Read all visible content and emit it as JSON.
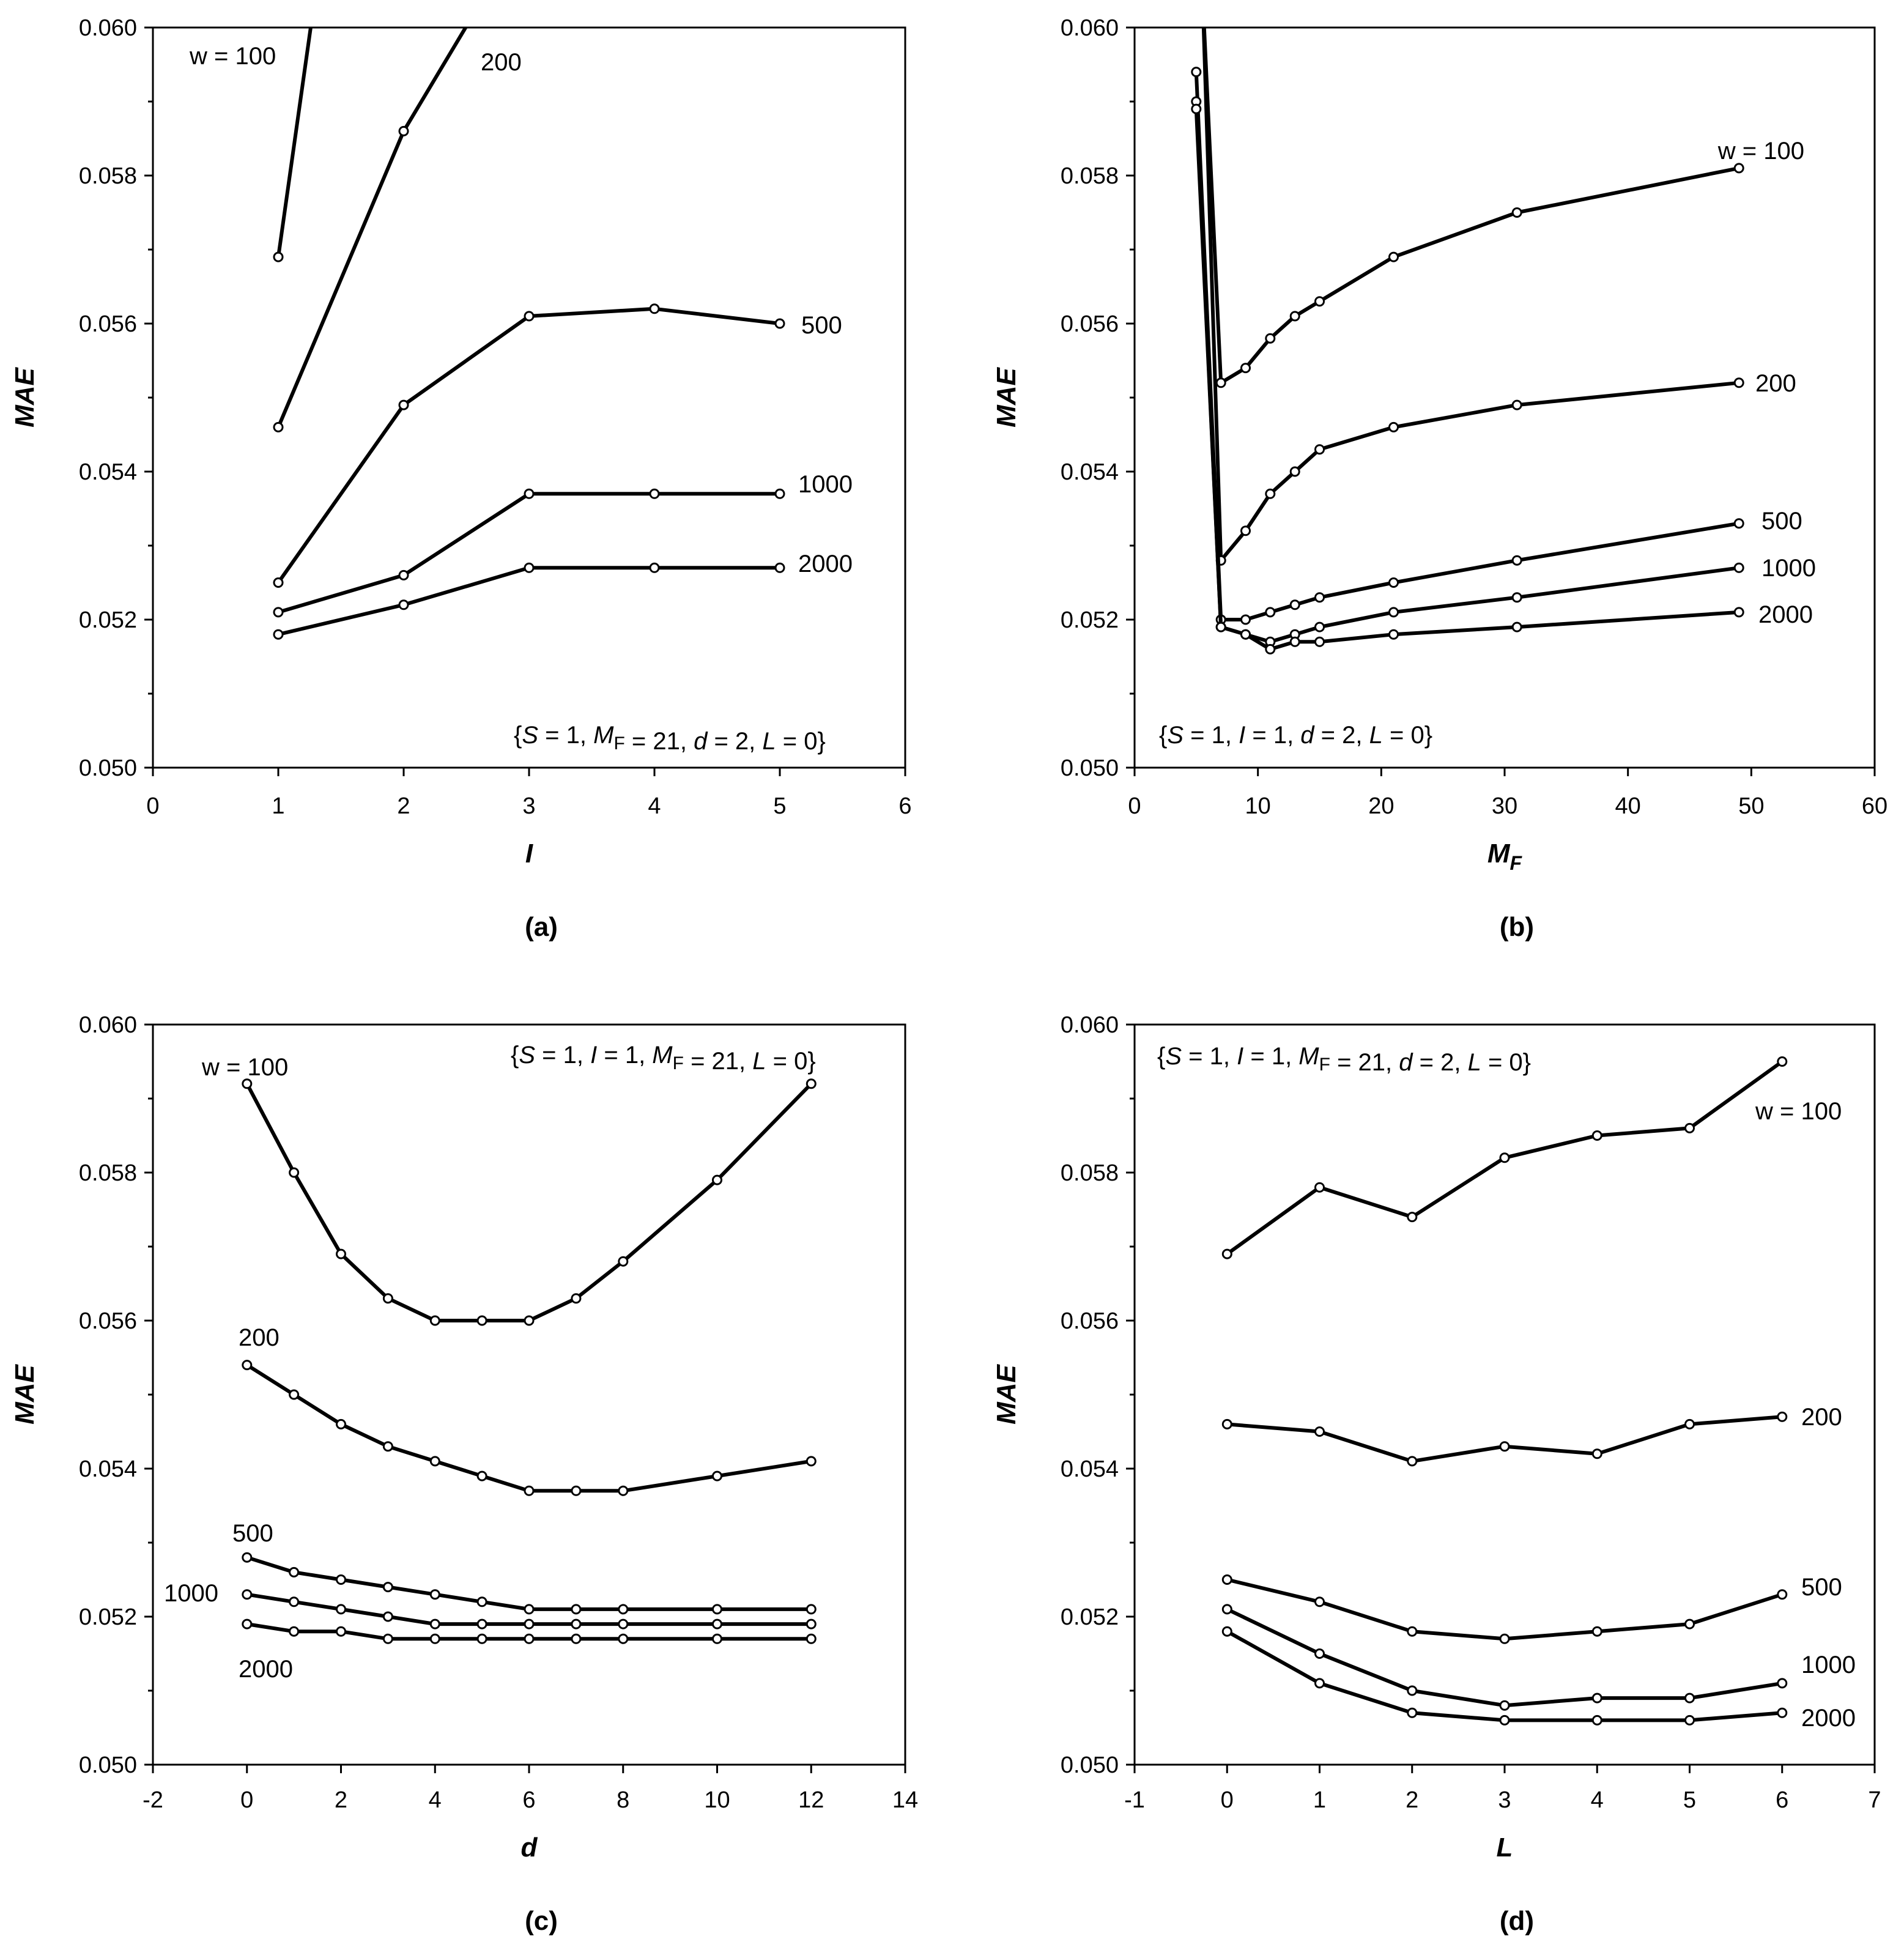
{
  "chart_data": [
    {
      "type": "line",
      "panel_label": "(a)",
      "xlabel": "I",
      "xlabel_sub": "",
      "ylabel": "MAE",
      "xlim": [
        0,
        6
      ],
      "ylim": [
        0.05,
        0.06
      ],
      "xticks": [
        "0",
        "1",
        "2",
        "3",
        "4",
        "5",
        "6"
      ],
      "yticks": [
        "0.050",
        "0.052",
        "0.054",
        "0.056",
        "0.058",
        "0.060"
      ],
      "note": {
        "prefix": "{",
        "parts": [
          {
            "t": "S",
            "i": true
          },
          {
            "t": " = 1, "
          },
          {
            "t": "M",
            "i": true
          },
          {
            "t": "F",
            "sub": true
          },
          {
            "t": " = 21, "
          },
          {
            "t": "d",
            "i": true
          },
          {
            "t": " = 2, "
          },
          {
            "t": "L",
            "i": true
          },
          {
            "t": " = 0}"
          }
        ]
      },
      "series": [
        {
          "name": "w = 100",
          "x": [
            1,
            1.3
          ],
          "y": [
            0.0569,
            0.0605
          ]
        },
        {
          "name": "200",
          "x": [
            1,
            2,
            2.6
          ],
          "y": [
            0.0546,
            0.0586,
            0.0603
          ]
        },
        {
          "name": "500",
          "x": [
            1,
            2,
            3,
            4,
            5
          ],
          "y": [
            0.0525,
            0.0549,
            0.0561,
            0.0562,
            0.056
          ]
        },
        {
          "name": "1000",
          "x": [
            1,
            2,
            3,
            4,
            5
          ],
          "y": [
            0.0521,
            0.0526,
            0.0537,
            0.0537,
            0.0537
          ]
        },
        {
          "name": "2000",
          "x": [
            1,
            2,
            3,
            4,
            5
          ],
          "y": [
            0.0518,
            0.0522,
            0.0527,
            0.0527,
            0.0527
          ]
        }
      ]
    },
    {
      "type": "line",
      "panel_label": "(b)",
      "xlabel": "M",
      "xlabel_sub": "F",
      "ylabel": "MAE",
      "xlim": [
        0,
        60
      ],
      "ylim": [
        0.05,
        0.06
      ],
      "xticks": [
        "0",
        "10",
        "20",
        "30",
        "40",
        "50",
        "60"
      ],
      "yticks": [
        "0.050",
        "0.052",
        "0.054",
        "0.056",
        "0.058",
        "0.060"
      ],
      "note": {
        "prefix": "{",
        "parts": [
          {
            "t": "S",
            "i": true
          },
          {
            "t": " = 1, "
          },
          {
            "t": "I",
            "i": true
          },
          {
            "t": " = 1, "
          },
          {
            "t": "d",
            "i": true
          },
          {
            "t": " = 2, "
          },
          {
            "t": "L",
            "i": true
          },
          {
            "t": " = 0}"
          }
        ]
      },
      "series": [
        {
          "name": "w = 100",
          "x": [
            5.5,
            7,
            9,
            11,
            13,
            15,
            21,
            31,
            49
          ],
          "y": [
            0.0605,
            0.0552,
            0.0554,
            0.0558,
            0.0561,
            0.0563,
            0.0569,
            0.0575,
            0.0581
          ]
        },
        {
          "name": "200",
          "x": [
            5.5,
            7,
            9,
            11,
            13,
            15,
            21,
            31,
            49
          ],
          "y": [
            0.0605,
            0.0528,
            0.0532,
            0.0537,
            0.054,
            0.0543,
            0.0546,
            0.0549,
            0.0552
          ]
        },
        {
          "name": "500",
          "x": [
            5,
            7,
            9,
            11,
            13,
            15,
            21,
            31,
            49
          ],
          "y": [
            0.0594,
            0.052,
            0.052,
            0.0521,
            0.0522,
            0.0523,
            0.0525,
            0.0528,
            0.0533
          ]
        },
        {
          "name": "1000",
          "x": [
            5,
            7,
            9,
            11,
            13,
            15,
            21,
            31,
            49
          ],
          "y": [
            0.059,
            0.0519,
            0.0518,
            0.0517,
            0.0518,
            0.0519,
            0.0521,
            0.0523,
            0.0527
          ]
        },
        {
          "name": "2000",
          "x": [
            5,
            7,
            9,
            11,
            13,
            15,
            21,
            31,
            49
          ],
          "y": [
            0.0589,
            0.0519,
            0.0518,
            0.0516,
            0.0517,
            0.0517,
            0.0518,
            0.0519,
            0.0521
          ]
        }
      ]
    },
    {
      "type": "line",
      "panel_label": "(c)",
      "xlabel": "d",
      "xlabel_sub": "",
      "ylabel": "MAE",
      "xlim": [
        -2,
        14
      ],
      "ylim": [
        0.05,
        0.06
      ],
      "xticks": [
        "-2",
        "0",
        "2",
        "4",
        "6",
        "8",
        "10",
        "12",
        "14"
      ],
      "yticks": [
        "0.050",
        "0.052",
        "0.054",
        "0.056",
        "0.058",
        "0.060"
      ],
      "note": {
        "prefix": "{",
        "parts": [
          {
            "t": "S",
            "i": true
          },
          {
            "t": " = 1, "
          },
          {
            "t": "I",
            "i": true
          },
          {
            "t": " = 1, "
          },
          {
            "t": "M",
            "i": true
          },
          {
            "t": "F",
            "sub": true
          },
          {
            "t": " = 21, "
          },
          {
            "t": "L",
            "i": true
          },
          {
            "t": " = 0}"
          }
        ]
      },
      "series": [
        {
          "name": "w = 100",
          "x": [
            0,
            1,
            2,
            3,
            4,
            5,
            6,
            7,
            8,
            10,
            12
          ],
          "y": [
            0.0592,
            0.058,
            0.0569,
            0.0563,
            0.056,
            0.056,
            0.056,
            0.0563,
            0.0568,
            0.0579,
            0.0592
          ]
        },
        {
          "name": "200",
          "x": [
            0,
            1,
            2,
            3,
            4,
            5,
            6,
            7,
            8,
            10,
            12
          ],
          "y": [
            0.0554,
            0.055,
            0.0546,
            0.0543,
            0.0541,
            0.0539,
            0.0537,
            0.0537,
            0.0537,
            0.0539,
            0.0541
          ]
        },
        {
          "name": "500",
          "x": [
            0,
            1,
            2,
            3,
            4,
            5,
            6,
            7,
            8,
            10,
            12
          ],
          "y": [
            0.0528,
            0.0526,
            0.0525,
            0.0524,
            0.0523,
            0.0522,
            0.0521,
            0.0521,
            0.0521,
            0.0521,
            0.0521
          ]
        },
        {
          "name": "1000",
          "x": [
            0,
            1,
            2,
            3,
            4,
            5,
            6,
            7,
            8,
            10,
            12
          ],
          "y": [
            0.0523,
            0.0522,
            0.0521,
            0.052,
            0.0519,
            0.0519,
            0.0519,
            0.0519,
            0.0519,
            0.0519,
            0.0519
          ]
        },
        {
          "name": "2000",
          "x": [
            0,
            1,
            2,
            3,
            4,
            5,
            6,
            7,
            8,
            10,
            12
          ],
          "y": [
            0.0519,
            0.0518,
            0.0518,
            0.0517,
            0.0517,
            0.0517,
            0.0517,
            0.0517,
            0.0517,
            0.0517,
            0.0517
          ]
        }
      ]
    },
    {
      "type": "line",
      "panel_label": "(d)",
      "xlabel": "L",
      "xlabel_sub": "",
      "ylabel": "MAE",
      "xlim": [
        -1,
        7
      ],
      "ylim": [
        0.05,
        0.06
      ],
      "xticks": [
        "-1",
        "0",
        "1",
        "2",
        "3",
        "4",
        "5",
        "6",
        "7"
      ],
      "yticks": [
        "0.050",
        "0.052",
        "0.054",
        "0.056",
        "0.058",
        "0.060"
      ],
      "note": {
        "prefix": "{",
        "parts": [
          {
            "t": "S",
            "i": true
          },
          {
            "t": " = 1, "
          },
          {
            "t": "I",
            "i": true
          },
          {
            "t": " = 1, "
          },
          {
            "t": "M",
            "i": true
          },
          {
            "t": "F",
            "sub": true
          },
          {
            "t": " = 21, "
          },
          {
            "t": "d",
            "i": true
          },
          {
            "t": " = 2, "
          },
          {
            "t": "L",
            "i": true
          },
          {
            "t": " = 0}"
          }
        ]
      },
      "series": [
        {
          "name": "w = 100",
          "x": [
            0,
            1,
            2,
            3,
            4,
            5,
            6
          ],
          "y": [
            0.0569,
            0.0578,
            0.0574,
            0.0582,
            0.0585,
            0.0586,
            0.0595
          ]
        },
        {
          "name": "200",
          "x": [
            0,
            1,
            2,
            3,
            4,
            5,
            6
          ],
          "y": [
            0.0546,
            0.0545,
            0.0541,
            0.0543,
            0.0542,
            0.0546,
            0.0547
          ]
        },
        {
          "name": "500",
          "x": [
            0,
            1,
            2,
            3,
            4,
            5,
            6
          ],
          "y": [
            0.0525,
            0.0522,
            0.0518,
            0.0517,
            0.0518,
            0.0519,
            0.0523
          ]
        },
        {
          "name": "1000",
          "x": [
            0,
            1,
            2,
            3,
            4,
            5,
            6
          ],
          "y": [
            0.0521,
            0.0515,
            0.051,
            0.0508,
            0.0509,
            0.0509,
            0.0511
          ]
        },
        {
          "name": "2000",
          "x": [
            0,
            1,
            2,
            3,
            4,
            5,
            6
          ],
          "y": [
            0.0518,
            0.0511,
            0.0507,
            0.0506,
            0.0506,
            0.0506,
            0.0507
          ]
        }
      ]
    }
  ]
}
